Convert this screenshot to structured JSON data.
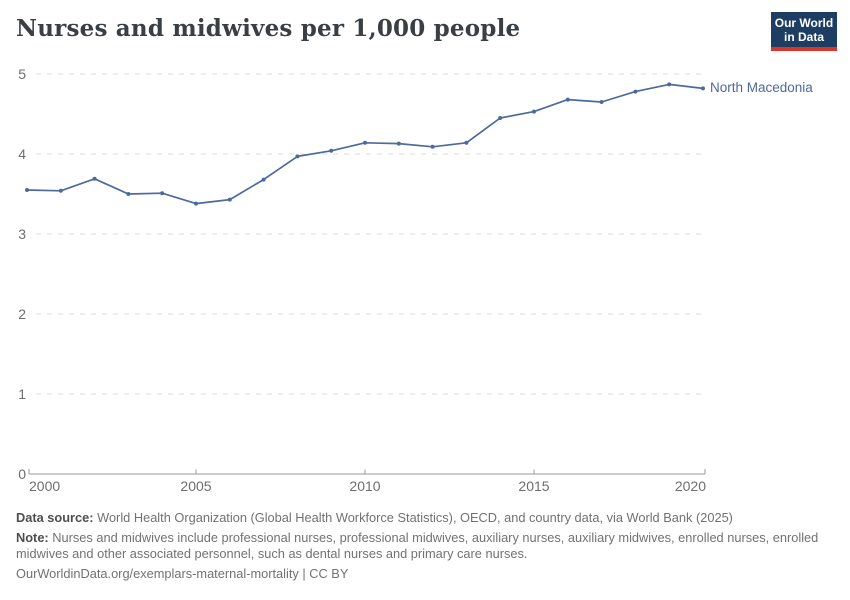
{
  "header": {
    "title": "Nurses and midwives per 1,000 people",
    "logo": {
      "line1": "Our World",
      "line2": "in Data"
    }
  },
  "chart_data": {
    "type": "line",
    "title": "Nurses and midwives per 1,000 people",
    "x": [
      2000,
      2001,
      2002,
      2003,
      2004,
      2005,
      2006,
      2007,
      2008,
      2009,
      2010,
      2011,
      2012,
      2013,
      2014,
      2015,
      2016,
      2017,
      2018,
      2019,
      2020
    ],
    "series": [
      {
        "name": "North Macedonia",
        "color": "#4c6a9c",
        "values": [
          3.55,
          3.54,
          3.69,
          3.5,
          3.51,
          3.38,
          3.43,
          3.68,
          3.97,
          4.04,
          4.14,
          4.13,
          4.09,
          4.14,
          4.45,
          4.53,
          4.68,
          4.65,
          4.78,
          4.87,
          4.82
        ]
      }
    ],
    "ylim": [
      0,
      5
    ],
    "yticks": [
      0,
      1,
      2,
      3,
      4,
      5
    ],
    "xticks": [
      2000,
      2005,
      2010,
      2015,
      2020
    ],
    "xlabel": "",
    "ylabel": "",
    "grid": "horizontal-dashed",
    "legend_position": "line-end-label"
  },
  "colors": {
    "series": "#4c6a9c",
    "grid": "#dcdcdc",
    "axis": "#9b9b9b",
    "tick_label": "#6e6e6e",
    "title": "#3a3f44",
    "logo_bg": "#1d3d63",
    "logo_stripe": "#d8352c"
  },
  "footer": {
    "source_label": "Data source:",
    "source_text": "World Health Organization (Global Health Workforce Statistics), OECD, and country data, via World Bank (2025)",
    "note_label": "Note:",
    "note_text": "Nurses and midwives include professional nurses, professional midwives, auxiliary nurses, auxiliary midwives, enrolled nurses, enrolled midwives and other associated personnel, such as dental nurses and primary care nurses.",
    "license_text": "OurWorldinData.org/exemplars-maternal-mortality | CC BY"
  }
}
